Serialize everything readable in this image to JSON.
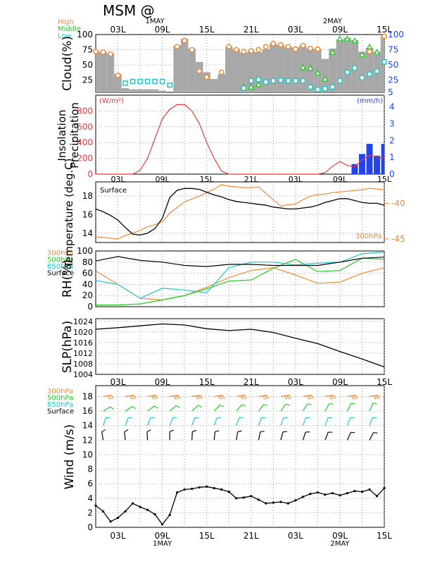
{
  "header": {
    "title": "MSM  @"
  },
  "time_axis": {
    "top_labels": [
      "03L",
      "09L",
      "15L",
      "21L",
      "03L",
      "09L",
      "15L"
    ],
    "bottom_labels": [
      "03L",
      "09L",
      "15L",
      "21L",
      "03L",
      "09L",
      "15L"
    ],
    "dates_top": [
      "1MAY",
      "2MAY"
    ],
    "dates_bottom": [
      "1MAY",
      "2MAY"
    ]
  },
  "colors": {
    "high": "#f08a32",
    "middle": "#22cc22",
    "low": "#22c8c8",
    "surface": "#000000",
    "insolation": "#e83a3a",
    "precip": "#2244ee",
    "bar": "#a8a8a8"
  },
  "chart_data": [
    {
      "type": "area",
      "id": "cloud",
      "ylabel": "Cloud(%)",
      "ylim": [
        0,
        100
      ],
      "yticks_left": [
        "100",
        "75",
        "50",
        "25"
      ],
      "yticks_right": [
        "100",
        "75",
        "50",
        "25",
        "5"
      ],
      "legend": [
        "High",
        "Middle",
        "Low"
      ],
      "x": [
        0,
        1,
        2,
        3,
        4,
        5,
        6,
        7,
        8,
        9,
        10,
        11,
        12,
        13,
        14,
        15,
        16,
        17,
        18,
        19,
        20,
        21,
        22,
        23,
        24,
        25,
        26,
        27,
        28,
        29,
        30,
        31,
        32,
        33,
        34,
        35,
        36,
        37,
        38,
        39
      ],
      "total": [
        73,
        72,
        69,
        35,
        12,
        10,
        10,
        10,
        10,
        8,
        4,
        82,
        93,
        77,
        55,
        38,
        27,
        35,
        80,
        76,
        70,
        73,
        71,
        76,
        85,
        83,
        80,
        79,
        82,
        77,
        76,
        60,
        77,
        92,
        95,
        91,
        72,
        78,
        72,
        97
      ],
      "series": [
        {
          "name": "High",
          "values": [
            72,
            71,
            68,
            33,
            null,
            null,
            null,
            null,
            null,
            null,
            null,
            80,
            90,
            75,
            40,
            30,
            null,
            38,
            80,
            75,
            72,
            73,
            75,
            80,
            85,
            83,
            80,
            76,
            82,
            77,
            76,
            null,
            null,
            null,
            null,
            null,
            null,
            72,
            null,
            97
          ]
        },
        {
          "name": "Middle",
          "values": [
            null,
            null,
            null,
            null,
            null,
            null,
            null,
            null,
            null,
            null,
            null,
            null,
            null,
            null,
            null,
            null,
            null,
            null,
            null,
            null,
            14,
            14,
            18,
            null,
            null,
            null,
            null,
            null,
            46,
            45,
            37,
            27,
            71,
            93,
            93,
            90,
            67,
            80,
            71,
            null
          ]
        },
        {
          "name": "Low",
          "values": [
            null,
            null,
            null,
            null,
            20,
            23,
            23,
            23,
            23,
            23,
            17,
            null,
            null,
            null,
            null,
            null,
            null,
            null,
            null,
            null,
            12,
            24,
            26,
            22,
            24,
            25,
            24,
            24,
            24,
            14,
            10,
            11,
            14,
            24,
            38,
            45,
            29,
            35,
            40,
            55
          ]
        }
      ]
    },
    {
      "type": "line",
      "id": "insolation",
      "ylabel": "Insolation Precipitation",
      "unit_left": "(W/m²)",
      "unit_right": "(mm/h)",
      "ylim": [
        0,
        1000
      ],
      "yticks_left": [
        "800",
        "600",
        "400",
        "200",
        "0"
      ],
      "yticks_right": [
        "4",
        "3",
        "2",
        "1",
        "0"
      ],
      "x": [
        0,
        1,
        2,
        3,
        4,
        5,
        6,
        7,
        8,
        9,
        10,
        11,
        12,
        13,
        14,
        15,
        16,
        17,
        18,
        19,
        20,
        21,
        22,
        23,
        24,
        25,
        26,
        27,
        28,
        29,
        30,
        31,
        32,
        33,
        34,
        35,
        36,
        37,
        38,
        39
      ],
      "insolation": [
        0,
        0,
        0,
        0,
        0,
        0,
        50,
        200,
        450,
        700,
        820,
        880,
        880,
        800,
        640,
        400,
        200,
        40,
        0,
        0,
        0,
        0,
        0,
        0,
        0,
        0,
        0,
        0,
        0,
        0,
        0,
        20,
        100,
        160,
        110,
        90,
        180,
        240,
        220,
        200
      ],
      "precip_x": [
        35,
        36,
        37,
        38,
        39
      ],
      "precip": [
        0.6,
        1.2,
        1.8,
        1.1,
        1.8
      ]
    },
    {
      "type": "line",
      "id": "temperature",
      "ylabel": "Temperature (deg.C)",
      "label_inside": "Surface",
      "label_upper": "300hPa",
      "ylim_left": [
        13,
        19.5
      ],
      "ylim_right": [
        -45.5,
        -37
      ],
      "yticks_left": [
        "18",
        "16",
        "14"
      ],
      "yticks_right": [
        "-40",
        "-45"
      ],
      "x": [
        0,
        1,
        2,
        3,
        4,
        5,
        6,
        7,
        8,
        9,
        10,
        11,
        12,
        13,
        14,
        15,
        16,
        17,
        18,
        19,
        20,
        21,
        22,
        23,
        24,
        25,
        26,
        27,
        28,
        29,
        30,
        31,
        32,
        33,
        34,
        35,
        36,
        37,
        38,
        39
      ],
      "surface": [
        16.6,
        16.3,
        15.9,
        15.4,
        14.6,
        13.9,
        13.8,
        14.0,
        14.5,
        15.6,
        17.8,
        18.6,
        18.8,
        18.8,
        18.7,
        18.4,
        18.1,
        17.9,
        17.6,
        17.4,
        17.3,
        17.2,
        17.1,
        17.0,
        16.8,
        16.7,
        16.6,
        16.6,
        16.7,
        16.8,
        17.0,
        17.3,
        17.5,
        17.7,
        17.7,
        17.5,
        17.3,
        17.2,
        17.2,
        17.0
      ],
      "upper": [
        -44.7,
        -44.8,
        -44.9,
        -45.0,
        -44.5,
        -44.2,
        -43.8,
        -43.3,
        -43.0,
        -42.6,
        -41.4,
        -40.6,
        -39.8,
        -39.4,
        -39.0,
        -38.5,
        -38.0,
        -37.4,
        -37.6,
        -37.7,
        -37.8,
        -37.8,
        -37.7,
        -38.6,
        -39.5,
        -40.4,
        -40.2,
        -40.1,
        -39.5,
        -39.0,
        -38.8,
        -38.7,
        -38.5,
        -38.4,
        -38.3,
        -38.2,
        -38.1,
        -37.9,
        -38.0,
        -38.1
      ]
    },
    {
      "type": "line",
      "id": "rh",
      "ylabel": "RH(%)",
      "legend": [
        "300hPa",
        "500hPa",
        "850hPa",
        "Surface"
      ],
      "ylim": [
        0,
        100
      ],
      "yticks": [
        "100",
        "80",
        "60",
        "40",
        "20",
        "0"
      ],
      "x": [
        0,
        3,
        6,
        9,
        12,
        15,
        18,
        21,
        24,
        27,
        30,
        33,
        36,
        39
      ],
      "series": [
        {
          "name": "300hPa",
          "values": [
            64,
            40,
            15,
            12,
            20,
            35,
            52,
            65,
            70,
            57,
            42,
            44,
            60,
            70
          ]
        },
        {
          "name": "500hPa",
          "values": [
            3,
            3,
            5,
            12,
            20,
            32,
            46,
            48,
            69,
            85,
            63,
            65,
            87,
            85
          ]
        },
        {
          "name": "850hPa",
          "values": [
            47,
            40,
            15,
            33,
            30,
            25,
            70,
            80,
            80,
            75,
            78,
            80,
            95,
            98
          ]
        },
        {
          "name": "Surface",
          "values": [
            82,
            90,
            83,
            80,
            74,
            72,
            76,
            76,
            74,
            74,
            74,
            80,
            87,
            89
          ]
        }
      ]
    },
    {
      "type": "line",
      "id": "slp",
      "ylabel": "SLP(hPa)",
      "ylim": [
        1004,
        1025
      ],
      "yticks": [
        "1024",
        "1020",
        "1016",
        "1012",
        "1008",
        "1004"
      ],
      "x": [
        0,
        3,
        6,
        9,
        12,
        15,
        18,
        21,
        24,
        27,
        30,
        33,
        36,
        39
      ],
      "values": [
        1021,
        1021.6,
        1022.3,
        1023.0,
        1022.6,
        1021.2,
        1020.5,
        1021.0,
        1019.8,
        1017.6,
        1015.6,
        1012.6,
        1009.8,
        1006.8
      ]
    },
    {
      "type": "line",
      "id": "wind",
      "ylabel": "Wind (m/s)",
      "legend": [
        "300hPa",
        "500hPa",
        "850hPa",
        "Surface"
      ],
      "ylim": [
        0,
        19.5
      ],
      "yticks": [
        "18",
        "16",
        "14",
        "12",
        "10",
        "8",
        "6",
        "4",
        "2",
        "0"
      ],
      "x": [
        0,
        1,
        2,
        3,
        4,
        5,
        6,
        7,
        8,
        9,
        10,
        11,
        12,
        13,
        14,
        15,
        16,
        17,
        18,
        19,
        20,
        21,
        22,
        23,
        24,
        25,
        26,
        27,
        28,
        29,
        30,
        31,
        32,
        33,
        34,
        35,
        36,
        37,
        38,
        39
      ],
      "surface": [
        3.0,
        2.2,
        0.8,
        1.3,
        2.2,
        3.3,
        2.8,
        2.4,
        1.8,
        0.4,
        1.7,
        4.8,
        5.2,
        5.3,
        5.5,
        5.6,
        5.4,
        5.2,
        4.9,
        4.0,
        4.1,
        4.3,
        3.8,
        3.3,
        3.4,
        3.5,
        3.3,
        3.7,
        4.2,
        4.6,
        4.8,
        4.5,
        4.7,
        4.4,
        4.7,
        5.0,
        4.9,
        5.2,
        4.3,
        5.4
      ]
    }
  ]
}
